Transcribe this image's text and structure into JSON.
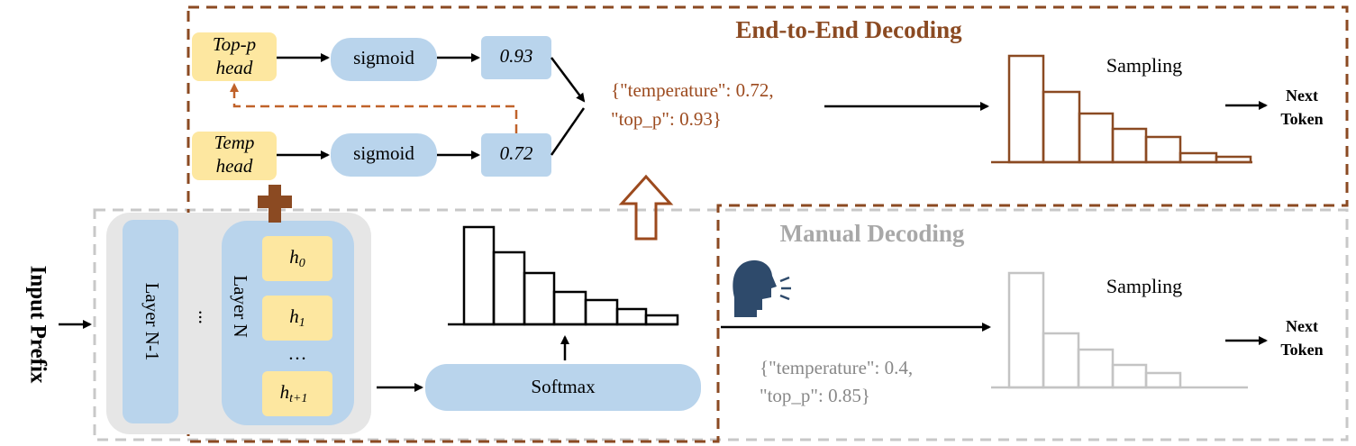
{
  "end_to_end": {
    "title": "End-to-End Decoding",
    "top_p_head": [
      "Top-p",
      "head"
    ],
    "temp_head": [
      "Temp",
      "head"
    ],
    "sigmoid_top": "sigmoid",
    "sigmoid_bottom": "sigmoid",
    "top_p_value": "0.93",
    "temp_value": "0.72",
    "params": [
      "{\"temperature\": 0.72,",
      "\"top_p\": 0.93}"
    ],
    "sampling": "Sampling",
    "next_token": [
      "Next",
      "Token"
    ]
  },
  "model": {
    "input": "Input Prefix",
    "layer_prev": "Layer N-1",
    "ellipsis": "...",
    "layer": "Layer N",
    "hidden": [
      {
        "h": "h",
        "sub": "0"
      },
      {
        "h": "h",
        "sub": "1"
      },
      {
        "h": "h",
        "sub": "t+1"
      }
    ],
    "hidden_ellipsis": "…",
    "softmax": "Softmax"
  },
  "manual": {
    "title": "Manual Decoding",
    "params": [
      "{\"temperature\": 0.4,",
      "\"top_p\": 0.85}"
    ],
    "sampling": "Sampling",
    "next_token": [
      "Next",
      "Token"
    ]
  }
}
